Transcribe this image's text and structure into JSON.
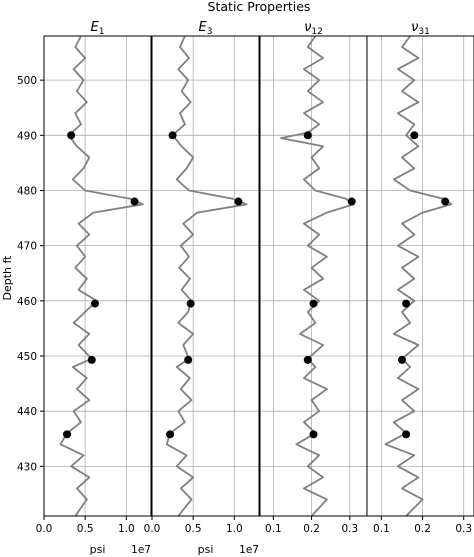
{
  "chart_data": {
    "type": "line",
    "title": "Static Properties",
    "ylabel": "Depth ft",
    "ylim": [
      508,
      421
    ],
    "y_ticks": [
      430,
      440,
      450,
      460,
      470,
      480,
      490,
      500
    ],
    "y_tick_labels": [
      "430",
      "440",
      "450",
      "460",
      "470",
      "480",
      "490",
      "500"
    ],
    "grid": true,
    "panels": [
      {
        "title_base": "E",
        "title_sub": "1",
        "xlabel": "psi",
        "offset_text": "1e7",
        "xlim": [
          0.0,
          1.3
        ],
        "x_ticks": [
          0.0,
          0.5,
          1.0
        ],
        "x_tick_labels": [
          "0.0",
          "0.5",
          "1.0"
        ],
        "line_color": "#808080",
        "point_color": "#000000",
        "log": [
          {
            "depth": 421,
            "value": 0.38
          },
          {
            "depth": 424,
            "value": 0.52
          },
          {
            "depth": 426,
            "value": 0.4
          },
          {
            "depth": 428,
            "value": 0.55
          },
          {
            "depth": 430,
            "value": 0.33
          },
          {
            "depth": 432,
            "value": 0.48
          },
          {
            "depth": 434,
            "value": 0.2
          },
          {
            "depth": 436,
            "value": 0.28
          },
          {
            "depth": 438,
            "value": 0.45
          },
          {
            "depth": 440,
            "value": 0.36
          },
          {
            "depth": 442,
            "value": 0.55
          },
          {
            "depth": 444,
            "value": 0.4
          },
          {
            "depth": 446,
            "value": 0.52
          },
          {
            "depth": 448,
            "value": 0.35
          },
          {
            "depth": 449.5,
            "value": 0.58
          },
          {
            "depth": 452,
            "value": 0.42
          },
          {
            "depth": 454,
            "value": 0.55
          },
          {
            "depth": 456,
            "value": 0.36
          },
          {
            "depth": 458,
            "value": 0.5
          },
          {
            "depth": 460,
            "value": 0.64
          },
          {
            "depth": 462,
            "value": 0.42
          },
          {
            "depth": 464,
            "value": 0.52
          },
          {
            "depth": 466,
            "value": 0.38
          },
          {
            "depth": 468,
            "value": 0.5
          },
          {
            "depth": 470,
            "value": 0.4
          },
          {
            "depth": 472,
            "value": 0.55
          },
          {
            "depth": 474,
            "value": 0.42
          },
          {
            "depth": 476,
            "value": 0.6
          },
          {
            "depth": 477.5,
            "value": 1.2
          },
          {
            "depth": 478.5,
            "value": 1.05
          },
          {
            "depth": 480,
            "value": 0.5
          },
          {
            "depth": 482,
            "value": 0.35
          },
          {
            "depth": 484,
            "value": 0.48
          },
          {
            "depth": 486,
            "value": 0.55
          },
          {
            "depth": 488,
            "value": 0.4
          },
          {
            "depth": 490,
            "value": 0.3
          },
          {
            "depth": 492,
            "value": 0.45
          },
          {
            "depth": 494,
            "value": 0.38
          },
          {
            "depth": 496,
            "value": 0.52
          },
          {
            "depth": 498,
            "value": 0.4
          },
          {
            "depth": 500,
            "value": 0.48
          },
          {
            "depth": 502,
            "value": 0.36
          },
          {
            "depth": 504,
            "value": 0.5
          },
          {
            "depth": 506,
            "value": 0.38
          },
          {
            "depth": 508,
            "value": 0.45
          }
        ],
        "points": [
          {
            "depth": 435.8,
            "value": 0.28
          },
          {
            "depth": 449.3,
            "value": 0.58
          },
          {
            "depth": 459.5,
            "value": 0.62
          },
          {
            "depth": 478.0,
            "value": 1.1
          },
          {
            "depth": 490.0,
            "value": 0.33
          }
        ]
      },
      {
        "title_base": "E",
        "title_sub": "3",
        "xlabel": "psi",
        "offset_text": "1e7",
        "xlim": [
          0.0,
          1.3
        ],
        "x_ticks": [
          0.0,
          0.5,
          1.0
        ],
        "x_tick_labels": [
          "0.0",
          "0.5",
          "1.0"
        ],
        "line_color": "#808080",
        "point_color": "#000000",
        "log": [
          {
            "depth": 421,
            "value": 0.32
          },
          {
            "depth": 424,
            "value": 0.48
          },
          {
            "depth": 426,
            "value": 0.35
          },
          {
            "depth": 428,
            "value": 0.5
          },
          {
            "depth": 430,
            "value": 0.3
          },
          {
            "depth": 432,
            "value": 0.42
          },
          {
            "depth": 434,
            "value": 0.18
          },
          {
            "depth": 436,
            "value": 0.22
          },
          {
            "depth": 438,
            "value": 0.4
          },
          {
            "depth": 440,
            "value": 0.32
          },
          {
            "depth": 442,
            "value": 0.48
          },
          {
            "depth": 444,
            "value": 0.35
          },
          {
            "depth": 446,
            "value": 0.46
          },
          {
            "depth": 448,
            "value": 0.3
          },
          {
            "depth": 449.5,
            "value": 0.45
          },
          {
            "depth": 452,
            "value": 0.38
          },
          {
            "depth": 454,
            "value": 0.5
          },
          {
            "depth": 456,
            "value": 0.32
          },
          {
            "depth": 458,
            "value": 0.44
          },
          {
            "depth": 460,
            "value": 0.48
          },
          {
            "depth": 462,
            "value": 0.36
          },
          {
            "depth": 464,
            "value": 0.46
          },
          {
            "depth": 466,
            "value": 0.33
          },
          {
            "depth": 468,
            "value": 0.45
          },
          {
            "depth": 470,
            "value": 0.35
          },
          {
            "depth": 472,
            "value": 0.5
          },
          {
            "depth": 474,
            "value": 0.38
          },
          {
            "depth": 476,
            "value": 0.55
          },
          {
            "depth": 477.5,
            "value": 1.15
          },
          {
            "depth": 478.5,
            "value": 0.98
          },
          {
            "depth": 480,
            "value": 0.45
          },
          {
            "depth": 482,
            "value": 0.3
          },
          {
            "depth": 484,
            "value": 0.42
          },
          {
            "depth": 486,
            "value": 0.5
          },
          {
            "depth": 488,
            "value": 0.36
          },
          {
            "depth": 490,
            "value": 0.25
          },
          {
            "depth": 492,
            "value": 0.4
          },
          {
            "depth": 494,
            "value": 0.34
          },
          {
            "depth": 496,
            "value": 0.47
          },
          {
            "depth": 498,
            "value": 0.36
          },
          {
            "depth": 500,
            "value": 0.44
          },
          {
            "depth": 502,
            "value": 0.32
          },
          {
            "depth": 504,
            "value": 0.45
          },
          {
            "depth": 506,
            "value": 0.34
          },
          {
            "depth": 508,
            "value": 0.4
          }
        ],
        "points": [
          {
            "depth": 435.8,
            "value": 0.22
          },
          {
            "depth": 449.3,
            "value": 0.44
          },
          {
            "depth": 459.5,
            "value": 0.47
          },
          {
            "depth": 478.0,
            "value": 1.05
          },
          {
            "depth": 490.0,
            "value": 0.25
          }
        ]
      },
      {
        "title_base": "ν",
        "title_sub": "12",
        "xlabel": "",
        "offset_text": "",
        "xlim": [
          0.065,
          0.345
        ],
        "x_ticks": [
          0.1,
          0.2,
          0.3
        ],
        "x_tick_labels": [
          "0.1",
          "0.2",
          "0.3"
        ],
        "line_color": "#808080",
        "point_color": "#000000",
        "log": [
          {
            "depth": 421,
            "value": 0.2
          },
          {
            "depth": 424,
            "value": 0.24
          },
          {
            "depth": 426,
            "value": 0.18
          },
          {
            "depth": 428,
            "value": 0.23
          },
          {
            "depth": 430,
            "value": 0.19
          },
          {
            "depth": 432,
            "value": 0.22
          },
          {
            "depth": 434,
            "value": 0.16
          },
          {
            "depth": 436,
            "value": 0.21
          },
          {
            "depth": 438,
            "value": 0.18
          },
          {
            "depth": 440,
            "value": 0.22
          },
          {
            "depth": 442,
            "value": 0.2
          },
          {
            "depth": 444,
            "value": 0.24
          },
          {
            "depth": 446,
            "value": 0.18
          },
          {
            "depth": 448,
            "value": 0.21
          },
          {
            "depth": 449.5,
            "value": 0.19
          },
          {
            "depth": 452,
            "value": 0.23
          },
          {
            "depth": 454,
            "value": 0.17
          },
          {
            "depth": 456,
            "value": 0.21
          },
          {
            "depth": 458,
            "value": 0.19
          },
          {
            "depth": 460,
            "value": 0.22
          },
          {
            "depth": 462,
            "value": 0.18
          },
          {
            "depth": 464,
            "value": 0.23
          },
          {
            "depth": 466,
            "value": 0.2
          },
          {
            "depth": 468,
            "value": 0.24
          },
          {
            "depth": 470,
            "value": 0.19
          },
          {
            "depth": 472,
            "value": 0.22
          },
          {
            "depth": 474,
            "value": 0.18
          },
          {
            "depth": 476,
            "value": 0.24
          },
          {
            "depth": 477.5,
            "value": 0.31
          },
          {
            "depth": 478.5,
            "value": 0.29
          },
          {
            "depth": 480,
            "value": 0.21
          },
          {
            "depth": 482,
            "value": 0.18
          },
          {
            "depth": 484,
            "value": 0.22
          },
          {
            "depth": 486,
            "value": 0.2
          },
          {
            "depth": 488,
            "value": 0.23
          },
          {
            "depth": 489.5,
            "value": 0.12
          },
          {
            "depth": 490.5,
            "value": 0.19
          },
          {
            "depth": 492,
            "value": 0.22
          },
          {
            "depth": 494,
            "value": 0.18
          },
          {
            "depth": 496,
            "value": 0.23
          },
          {
            "depth": 498,
            "value": 0.19
          },
          {
            "depth": 500,
            "value": 0.22
          },
          {
            "depth": 502,
            "value": 0.18
          },
          {
            "depth": 504,
            "value": 0.23
          },
          {
            "depth": 506,
            "value": 0.19
          },
          {
            "depth": 508,
            "value": 0.21
          }
        ],
        "points": [
          {
            "depth": 435.8,
            "value": 0.205
          },
          {
            "depth": 449.3,
            "value": 0.19
          },
          {
            "depth": 459.5,
            "value": 0.205
          },
          {
            "depth": 478.0,
            "value": 0.305
          },
          {
            "depth": 490.0,
            "value": 0.19
          }
        ]
      },
      {
        "title_base": "ν",
        "title_sub": "31",
        "xlabel": "",
        "offset_text": "",
        "xlim": [
          0.065,
          0.325
        ],
        "x_ticks": [
          0.1,
          0.2,
          0.3
        ],
        "x_tick_labels": [
          "0.1",
          "0.2",
          "0.3"
        ],
        "line_color": "#808080",
        "point_color": "#000000",
        "log": [
          {
            "depth": 421,
            "value": 0.16
          },
          {
            "depth": 424,
            "value": 0.2
          },
          {
            "depth": 426,
            "value": 0.15
          },
          {
            "depth": 428,
            "value": 0.19
          },
          {
            "depth": 430,
            "value": 0.14
          },
          {
            "depth": 432,
            "value": 0.18
          },
          {
            "depth": 434,
            "value": 0.11
          },
          {
            "depth": 436,
            "value": 0.16
          },
          {
            "depth": 438,
            "value": 0.13
          },
          {
            "depth": 440,
            "value": 0.18
          },
          {
            "depth": 442,
            "value": 0.15
          },
          {
            "depth": 444,
            "value": 0.19
          },
          {
            "depth": 446,
            "value": 0.14
          },
          {
            "depth": 448,
            "value": 0.17
          },
          {
            "depth": 449.5,
            "value": 0.15
          },
          {
            "depth": 452,
            "value": 0.19
          },
          {
            "depth": 454,
            "value": 0.13
          },
          {
            "depth": 456,
            "value": 0.17
          },
          {
            "depth": 458,
            "value": 0.15
          },
          {
            "depth": 460,
            "value": 0.18
          },
          {
            "depth": 462,
            "value": 0.14
          },
          {
            "depth": 464,
            "value": 0.18
          },
          {
            "depth": 466,
            "value": 0.15
          },
          {
            "depth": 468,
            "value": 0.19
          },
          {
            "depth": 470,
            "value": 0.14
          },
          {
            "depth": 472,
            "value": 0.18
          },
          {
            "depth": 474,
            "value": 0.15
          },
          {
            "depth": 476,
            "value": 0.2
          },
          {
            "depth": 477.5,
            "value": 0.27
          },
          {
            "depth": 478.5,
            "value": 0.25
          },
          {
            "depth": 480,
            "value": 0.17
          },
          {
            "depth": 482,
            "value": 0.13
          },
          {
            "depth": 484,
            "value": 0.18
          },
          {
            "depth": 486,
            "value": 0.15
          },
          {
            "depth": 488,
            "value": 0.19
          },
          {
            "depth": 490,
            "value": 0.16
          },
          {
            "depth": 492,
            "value": 0.18
          },
          {
            "depth": 494,
            "value": 0.14
          },
          {
            "depth": 496,
            "value": 0.19
          },
          {
            "depth": 498,
            "value": 0.15
          },
          {
            "depth": 500,
            "value": 0.18
          },
          {
            "depth": 502,
            "value": 0.14
          },
          {
            "depth": 504,
            "value": 0.19
          },
          {
            "depth": 506,
            "value": 0.15
          },
          {
            "depth": 508,
            "value": 0.17
          }
        ],
        "points": [
          {
            "depth": 435.8,
            "value": 0.16
          },
          {
            "depth": 449.3,
            "value": 0.15
          },
          {
            "depth": 459.5,
            "value": 0.16
          },
          {
            "depth": 478.0,
            "value": 0.255
          },
          {
            "depth": 490.0,
            "value": 0.18
          }
        ]
      }
    ]
  }
}
